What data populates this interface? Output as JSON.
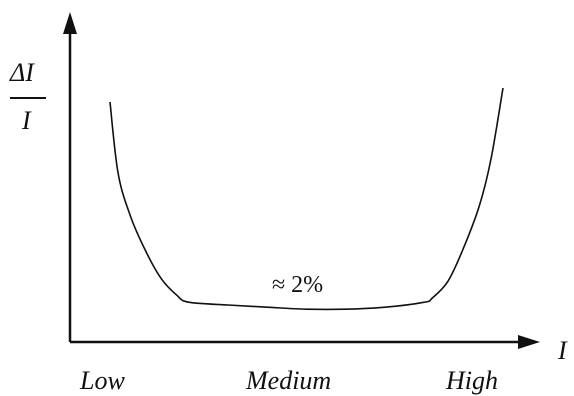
{
  "chart_data": {
    "type": "line",
    "title": "",
    "ylabel_numerator": "ΔI",
    "ylabel_denominator": "I",
    "xlabel": "I",
    "categories": [
      "Low",
      "Medium",
      "High"
    ],
    "annotation": "≈ 2%",
    "x_scale": "qualitative (Low → High)",
    "grid": false,
    "legend": "none",
    "series": [
      {
        "x": [
          0.0,
          0.02,
          0.05,
          0.09,
          0.13,
          0.17,
          0.2,
          0.3,
          0.4,
          0.5,
          0.6,
          0.7,
          0.8,
          0.82,
          0.86,
          0.9,
          0.94,
          0.97,
          1.0
        ],
        "values": [
          0.75,
          0.5,
          0.35,
          0.22,
          0.12,
          0.06,
          0.035,
          0.025,
          0.017,
          0.01,
          0.01,
          0.017,
          0.035,
          0.05,
          0.11,
          0.23,
          0.38,
          0.55,
          0.8
        ]
      }
    ]
  }
}
